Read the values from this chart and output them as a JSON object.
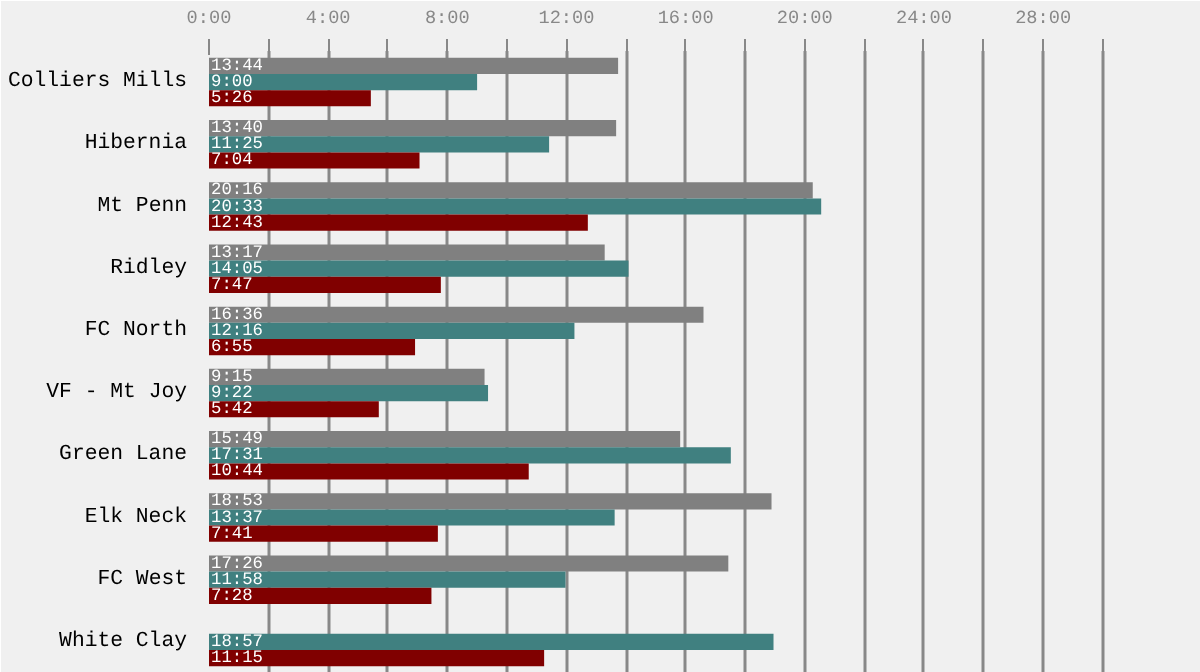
{
  "chart_data": {
    "type": "bar",
    "orientation": "horizontal",
    "categories": [
      "Colliers Mills",
      "Hibernia",
      "Mt Penn",
      "Ridley",
      "FC North",
      "VF - Mt Joy",
      "Green Lane",
      "Elk Neck",
      "FC West",
      "White Clay"
    ],
    "series": [
      {
        "color": "#808080",
        "values": [
          13.733,
          13.667,
          20.267,
          13.283,
          16.6,
          9.25,
          15.817,
          18.883,
          17.433,
          null
        ],
        "value_labels": [
          "13:44",
          "13:40",
          "20:16",
          "13:17",
          "16:36",
          "9:15",
          "15:49",
          "18:53",
          "17:26",
          null
        ]
      },
      {
        "color": "#408080",
        "values": [
          9.0,
          11.417,
          20.55,
          14.083,
          12.267,
          9.367,
          17.517,
          13.617,
          11.967,
          18.95
        ],
        "value_labels": [
          "9:00",
          "11:25",
          "20:33",
          "14:05",
          "12:16",
          "9:22",
          "17:31",
          "13:37",
          "11:58",
          "18:57"
        ]
      },
      {
        "color": "#800000",
        "values": [
          5.433,
          7.067,
          12.717,
          7.783,
          6.917,
          5.7,
          10.733,
          7.683,
          7.467,
          11.25
        ],
        "value_labels": [
          "5:26",
          "7:04",
          "12:43",
          "7:47",
          "6:55",
          "5:42",
          "10:44",
          "7:41",
          "7:28",
          "11:15"
        ]
      }
    ],
    "xlim": [
      0,
      33.3
    ],
    "xticks": [
      {
        "value": 0,
        "label": "0:00"
      },
      {
        "value": 2,
        "label": null
      },
      {
        "value": 4,
        "label": "4:00"
      },
      {
        "value": 6,
        "label": null
      },
      {
        "value": 8,
        "label": "8:00"
      },
      {
        "value": 10,
        "label": null
      },
      {
        "value": 12,
        "label": "12:00"
      },
      {
        "value": 14,
        "label": null
      },
      {
        "value": 16,
        "label": "16:00"
      },
      {
        "value": 18,
        "label": null
      },
      {
        "value": 20,
        "label": "20:00"
      },
      {
        "value": 22,
        "label": null
      },
      {
        "value": 24,
        "label": "24:00"
      },
      {
        "value": 26,
        "label": null
      },
      {
        "value": 28,
        "label": "28:00"
      },
      {
        "value": 30,
        "label": null
      }
    ],
    "grid": "x"
  }
}
